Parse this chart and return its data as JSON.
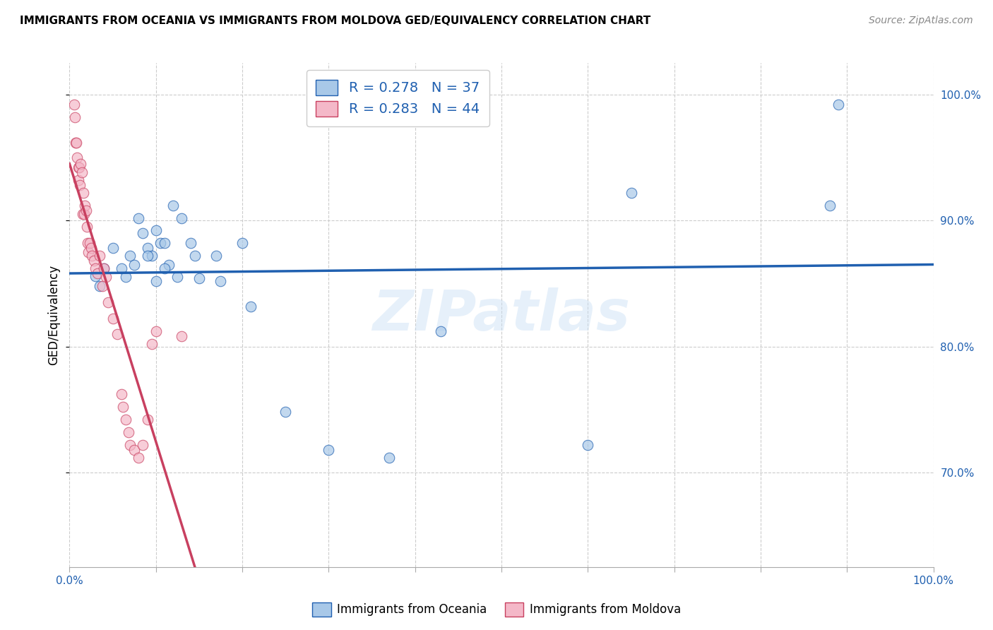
{
  "title": "IMMIGRANTS FROM OCEANIA VS IMMIGRANTS FROM MOLDOVA GED/EQUIVALENCY CORRELATION CHART",
  "source": "Source: ZipAtlas.com",
  "ylabel": "GED/Equivalency",
  "watermark": "ZIPatlas",
  "blue_color": "#a8c8e8",
  "pink_color": "#f4b8c8",
  "trend_blue": "#2060b0",
  "trend_pink": "#c84060",
  "oceania_scatter_x": [
    0.03,
    0.035,
    0.04,
    0.05,
    0.06,
    0.065,
    0.07,
    0.075,
    0.08,
    0.085,
    0.09,
    0.095,
    0.1,
    0.105,
    0.11,
    0.115,
    0.12,
    0.125,
    0.13,
    0.14,
    0.145,
    0.15,
    0.17,
    0.175,
    0.21,
    0.25,
    0.3,
    0.37,
    0.43,
    0.6,
    0.65,
    0.88,
    0.89,
    0.2,
    0.09,
    0.11,
    0.1
  ],
  "oceania_scatter_y": [
    0.856,
    0.848,
    0.862,
    0.878,
    0.862,
    0.855,
    0.872,
    0.865,
    0.902,
    0.89,
    0.878,
    0.872,
    0.892,
    0.882,
    0.882,
    0.865,
    0.912,
    0.855,
    0.902,
    0.882,
    0.872,
    0.854,
    0.872,
    0.852,
    0.832,
    0.748,
    0.718,
    0.712,
    0.812,
    0.722,
    0.922,
    0.912,
    0.992,
    0.882,
    0.872,
    0.862,
    0.852
  ],
  "moldova_scatter_x": [
    0.005,
    0.006,
    0.007,
    0.008,
    0.009,
    0.01,
    0.01,
    0.011,
    0.012,
    0.013,
    0.014,
    0.015,
    0.016,
    0.017,
    0.018,
    0.019,
    0.02,
    0.021,
    0.022,
    0.023,
    0.025,
    0.026,
    0.028,
    0.03,
    0.032,
    0.035,
    0.038,
    0.04,
    0.042,
    0.045,
    0.05,
    0.055,
    0.06,
    0.062,
    0.065,
    0.068,
    0.07,
    0.075,
    0.08,
    0.085,
    0.09,
    0.095,
    0.1,
    0.13
  ],
  "moldova_scatter_y": [
    0.992,
    0.982,
    0.962,
    0.962,
    0.95,
    0.942,
    0.932,
    0.942,
    0.928,
    0.945,
    0.938,
    0.905,
    0.922,
    0.905,
    0.912,
    0.908,
    0.895,
    0.882,
    0.875,
    0.882,
    0.878,
    0.872,
    0.868,
    0.862,
    0.858,
    0.872,
    0.848,
    0.862,
    0.855,
    0.835,
    0.822,
    0.81,
    0.762,
    0.752,
    0.742,
    0.732,
    0.722,
    0.718,
    0.712,
    0.722,
    0.742,
    0.802,
    0.812,
    0.808
  ],
  "xlim": [
    0.0,
    1.0
  ],
  "ylim": [
    0.625,
    1.025
  ],
  "yticks": [
    0.7,
    0.8,
    0.9,
    1.0
  ],
  "xtick_positions": [
    0.0,
    0.1,
    0.2,
    0.3,
    0.4,
    0.5,
    0.6,
    0.7,
    0.8,
    0.9,
    1.0
  ],
  "legend_line1": "R = 0.278   N = 37",
  "legend_line2": "R = 0.283   N = 44",
  "legend_color": "#2060b0",
  "bottom_legend_labels": [
    "Immigrants from Oceania",
    "Immigrants from Moldova"
  ]
}
